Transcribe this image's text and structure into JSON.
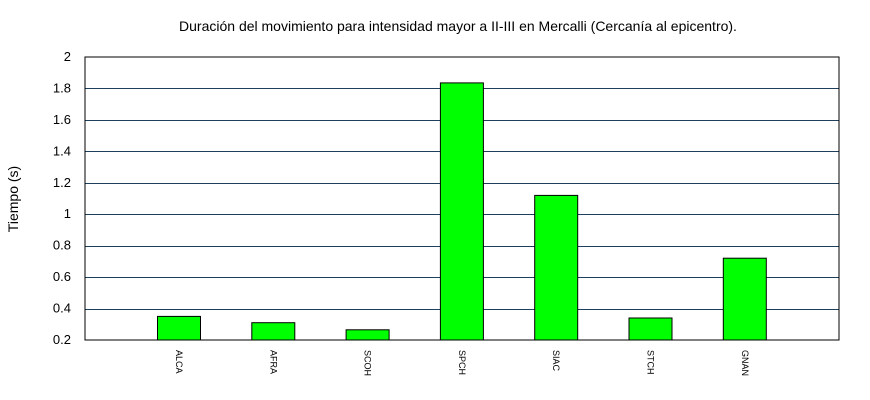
{
  "chart_data": {
    "type": "bar",
    "title": "Duración del movimiento para intensidad mayor a II-III en Mercalli (Cercanía al epicentro).",
    "xlabel": "",
    "ylabel": "Tiempo (s)",
    "categories": [
      "ALCA",
      "AFRA",
      "SCOH",
      "SPCH",
      "SIAC",
      "STCH",
      "GNAN"
    ],
    "values": [
      0.35,
      0.31,
      0.265,
      1.835,
      1.12,
      0.34,
      0.72
    ],
    "ylim": [
      0.2,
      2
    ],
    "yticks": [
      "0.2",
      "0.4",
      "0.6",
      "0.8",
      "1",
      "1.2",
      "1.4",
      "1.6",
      "1.8",
      "2"
    ],
    "grid": true,
    "legend": "none",
    "colors": {
      "bar": "#00ff00",
      "grid": "#1f3f5f",
      "axis": "#000000"
    }
  }
}
